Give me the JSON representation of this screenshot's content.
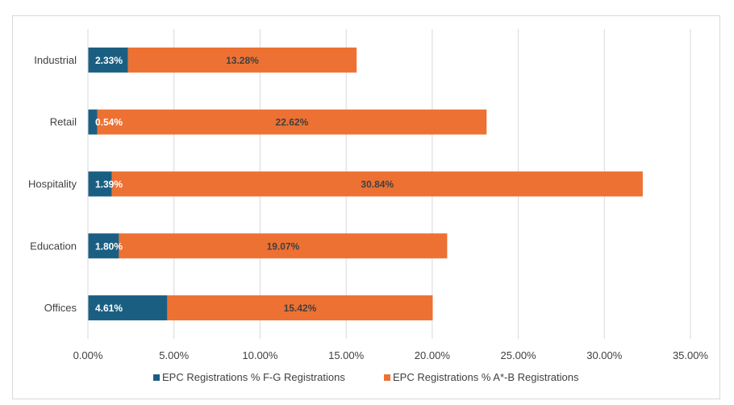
{
  "chart_data": {
    "type": "bar",
    "orientation": "horizontal",
    "stacked": true,
    "title": "",
    "xlabel": "",
    "ylabel": "",
    "categories": [
      "Industrial",
      "Retail",
      "Hospitality",
      "Education",
      "Offices"
    ],
    "series": [
      {
        "name": "EPC Registrations % F-G Registrations",
        "color": "#1a5f82",
        "values": [
          2.33,
          0.54,
          1.39,
          1.8,
          4.61
        ],
        "labels": [
          "2.33%",
          "0.54%",
          "1.39%",
          "1.80%",
          "4.61%"
        ],
        "label_color": "#ffffff"
      },
      {
        "name": "EPC Registrations % A*-B Registrations",
        "color": "#ed7133",
        "values": [
          13.28,
          22.62,
          30.84,
          19.07,
          15.42
        ],
        "labels": [
          "13.28%",
          "22.62%",
          "30.84%",
          "19.07%",
          "15.42%"
        ],
        "label_color": "#404040"
      }
    ],
    "xlim": [
      0,
      35
    ],
    "xticks": [
      0,
      5,
      10,
      15,
      20,
      25,
      30,
      35
    ],
    "xtick_labels": [
      "0.00%",
      "5.00%",
      "10.00%",
      "15.00%",
      "20.00%",
      "25.00%",
      "30.00%",
      "35.00%"
    ],
    "grid": true,
    "legend_position": "bottom",
    "gridline_color": "#d9d9d9"
  }
}
